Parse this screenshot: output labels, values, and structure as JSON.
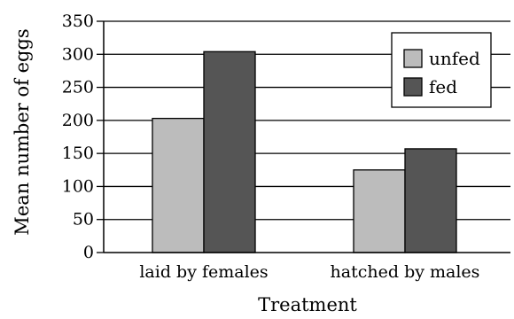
{
  "chart_data": {
    "type": "bar",
    "categories": [
      "laid by females",
      "hatched by males"
    ],
    "series": [
      {
        "name": "unfed",
        "values": [
          203,
          125
        ],
        "color": "#bcbcbc"
      },
      {
        "name": "fed",
        "values": [
          304,
          157
        ],
        "color": "#555555"
      }
    ],
    "xlabel": "Treatment",
    "ylabel": "Mean number of eggs",
    "ylim": [
      0,
      350
    ],
    "yticks": [
      0,
      50,
      100,
      150,
      200,
      250,
      300,
      350
    ],
    "grid": true,
    "legend": "top-right"
  }
}
